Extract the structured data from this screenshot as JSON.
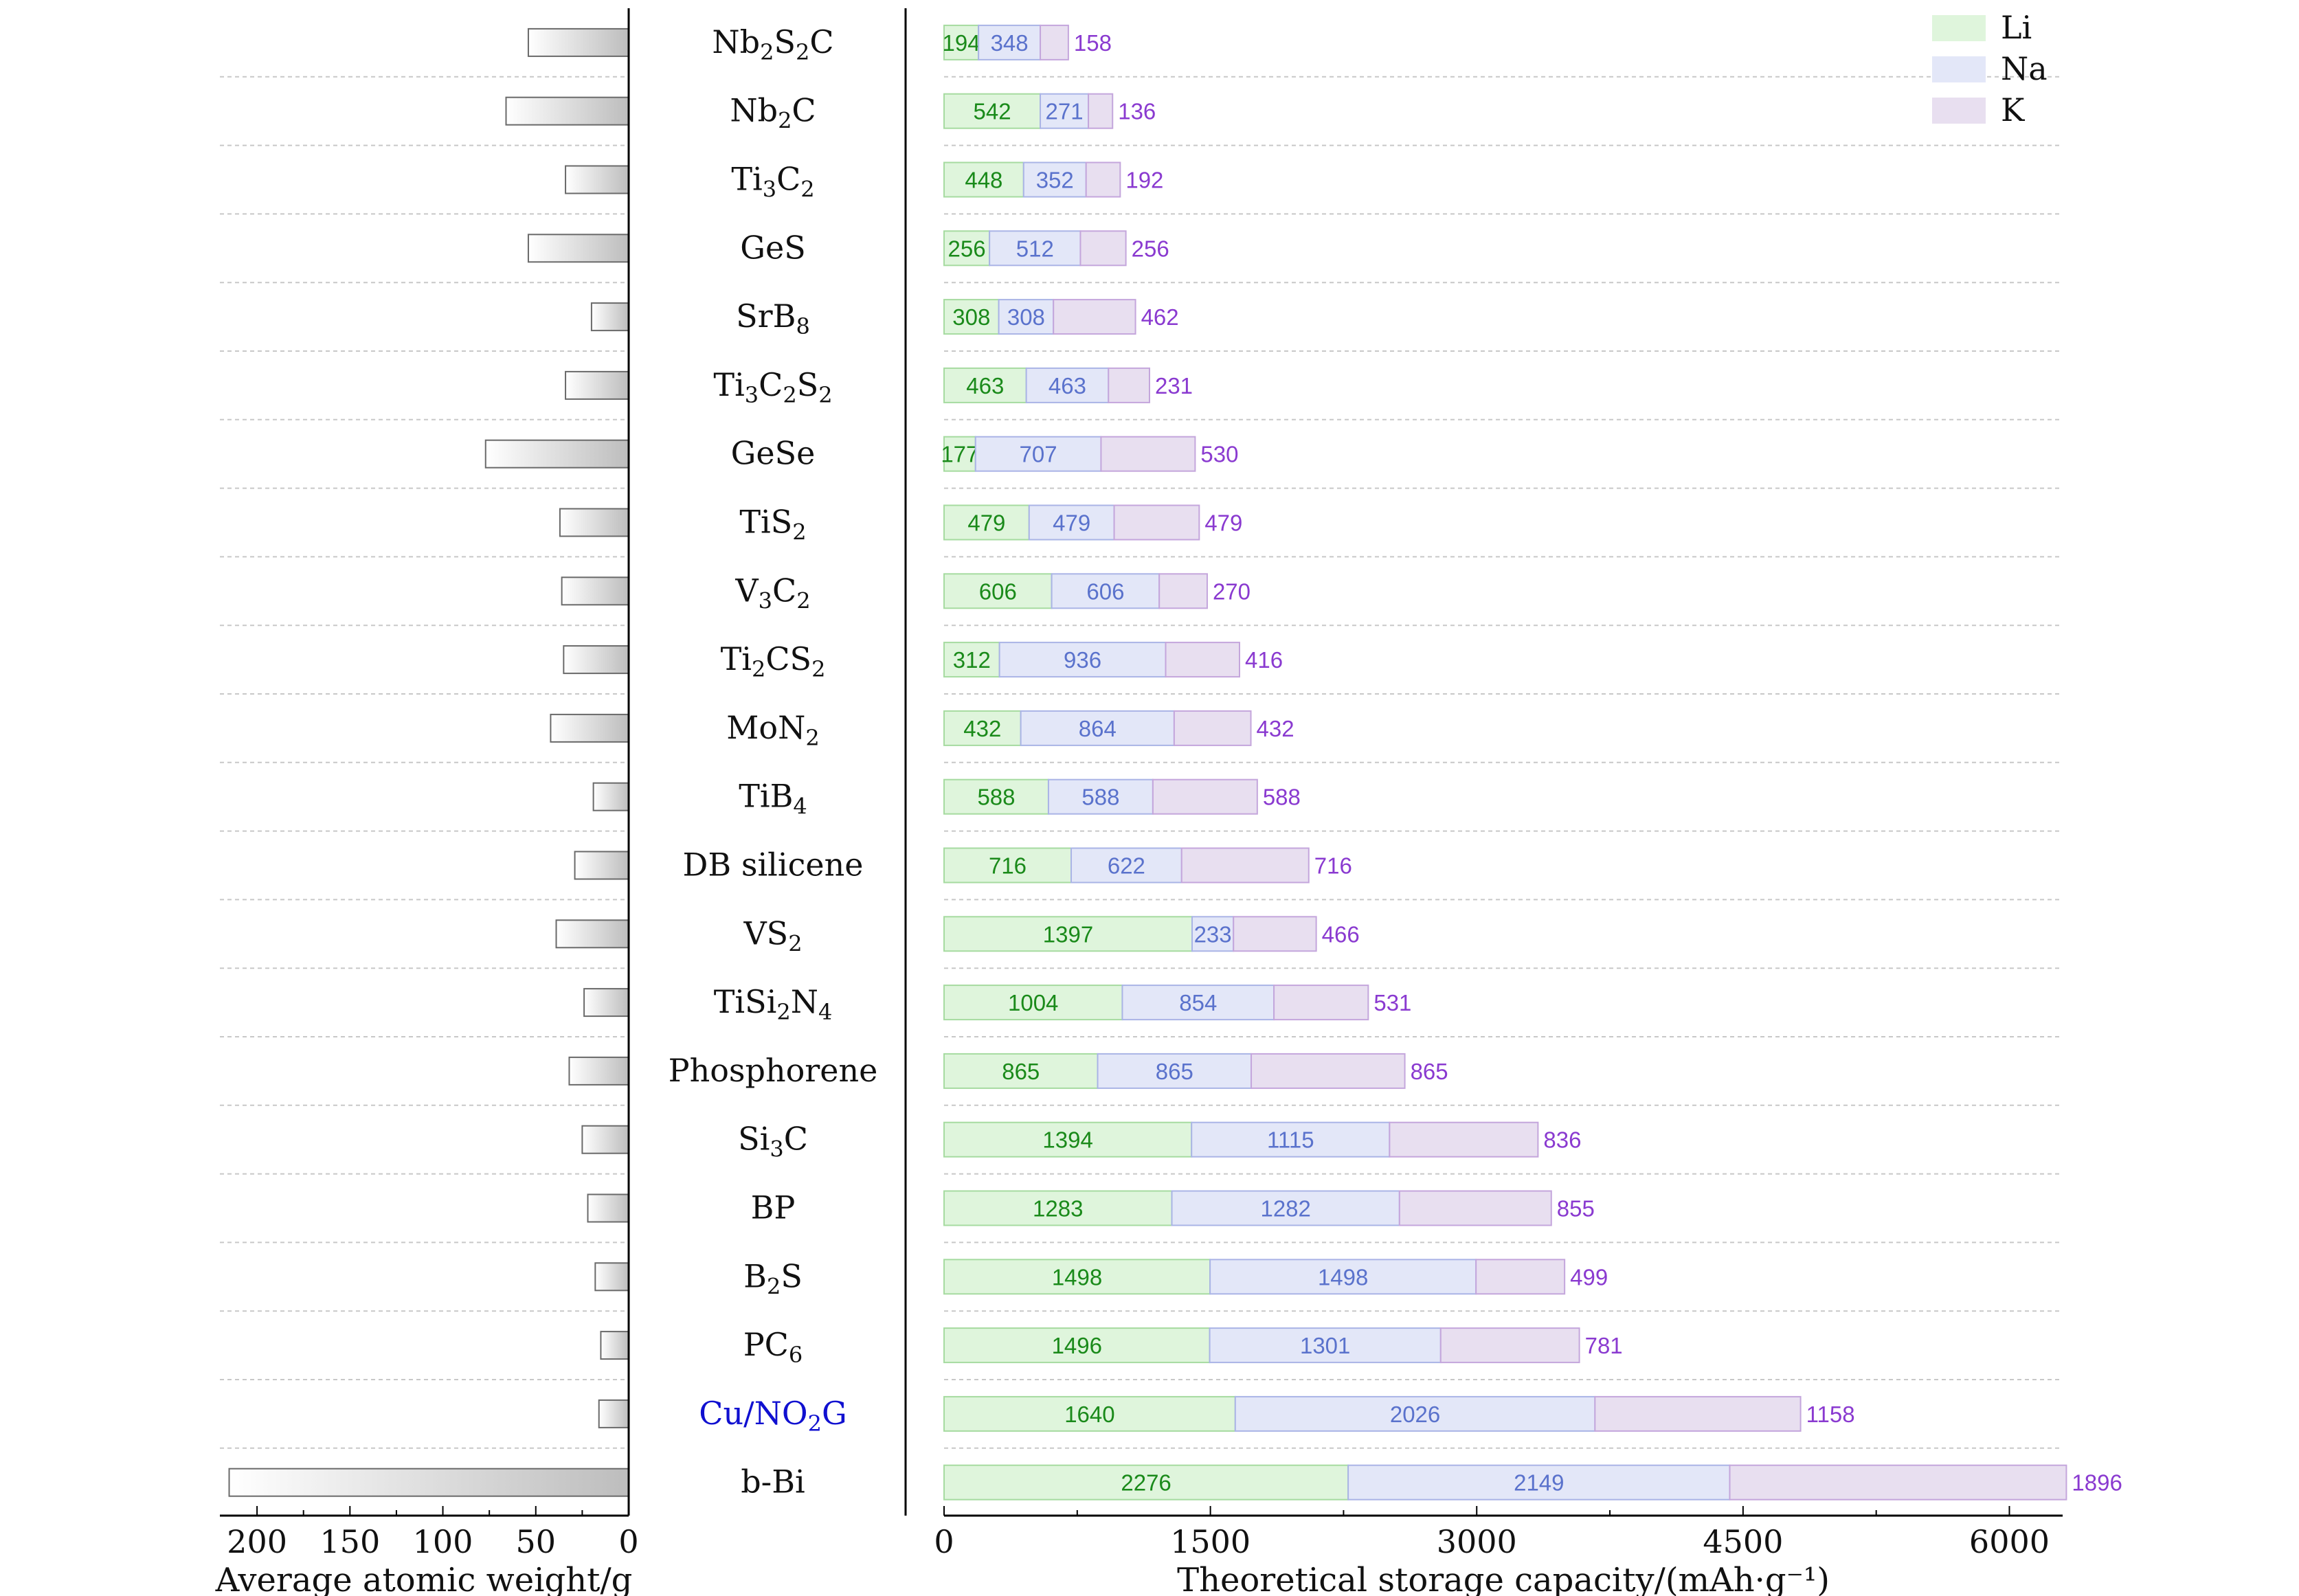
{
  "chart_data": [
    {
      "type": "bar",
      "orientation": "horizontal",
      "direction": "reversed",
      "xlabel": "Average atomic weight/g",
      "xlim": [
        0,
        220
      ],
      "xticks": [
        "200",
        "150",
        "100",
        "50",
        "0"
      ],
      "grid": "horizontal dashed separators",
      "values": [
        54,
        66,
        34,
        54,
        20,
        34,
        77,
        37,
        36,
        35,
        42,
        19,
        29,
        39,
        24,
        32,
        25,
        22,
        18,
        15,
        16,
        215
      ]
    },
    {
      "type": "bar",
      "stacked": true,
      "orientation": "horizontal",
      "xlabel": "Theoretical storage capacity/(mAh·g⁻¹)",
      "xlim": [
        0,
        6300
      ],
      "xticks": [
        "0",
        "1500",
        "3000",
        "4500",
        "6000"
      ],
      "legend_position": "top-right",
      "grid": "horizontal dashed separators",
      "categories": [
        "Nb₂S₂C",
        "Nb₂C",
        "Ti₃C₂",
        "GeS",
        "SrB₈",
        "Ti₃C₂S₂",
        "GeSe",
        "TiS₂",
        "V₃C₂",
        "Ti₂CS₂",
        "MoN₂",
        "TiB₄",
        "DB silicene",
        "VS₂",
        "TiSi₂N₄",
        "Phosphorene",
        "Si₃C",
        "BP",
        "B₂S",
        "PC₆",
        "Cu/NO₂G",
        "b-Bi"
      ],
      "highlight_category": "Cu/NO₂G",
      "series": [
        {
          "name": "Li",
          "values": [
            194,
            542,
            448,
            256,
            308,
            463,
            177,
            479,
            606,
            312,
            432,
            588,
            716,
            1397,
            1004,
            865,
            1394,
            1283,
            1498,
            1496,
            1640,
            2276
          ]
        },
        {
          "name": "Na",
          "values": [
            348,
            271,
            352,
            512,
            308,
            463,
            707,
            479,
            606,
            936,
            864,
            588,
            622,
            233,
            854,
            865,
            1115,
            1282,
            1498,
            1301,
            2026,
            2149
          ]
        },
        {
          "name": "K",
          "values": [
            158,
            136,
            192,
            256,
            462,
            231,
            530,
            479,
            270,
            416,
            432,
            588,
            716,
            466,
            531,
            865,
            836,
            855,
            499,
            781,
            1158,
            1896
          ]
        }
      ]
    }
  ],
  "colors": {
    "Li_fill": "#dff5dc",
    "Li_stroke": "#a6dba0",
    "Li_text": "#1a8a1a",
    "Na_fill": "#e3e7f8",
    "Na_stroke": "#aab4e6",
    "Na_text": "#5a72cc",
    "K_fill": "#e8dff0",
    "K_stroke": "#c4a6dc",
    "K_text": "#8a3ad0",
    "highlight_text": "#1010d0",
    "left_bar_start": "#ffffff",
    "left_bar_end": "#bdbdbd",
    "left_bar_stroke": "#6a6a6a"
  }
}
